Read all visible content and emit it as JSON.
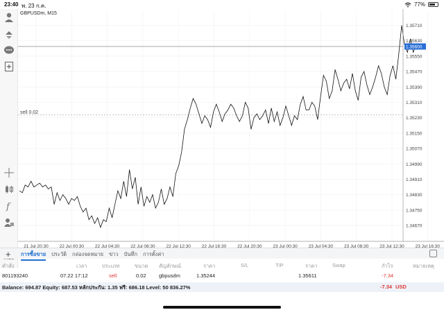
{
  "status": {
    "time": "23:40",
    "date": "พ. 23 ก.ค.",
    "battery": "77%",
    "battery_level": 0.77
  },
  "chart": {
    "symbol_label": "GBPUSDm, M15",
    "order_line_label": "sell 0.02",
    "current_price": "1.35600"
  },
  "chart_data": {
    "type": "line",
    "title": "GBPUSDm, M15",
    "y_ticks": [
      "1.35710",
      "1.35630",
      "1.35550",
      "1.35470",
      "1.35390",
      "1.35310",
      "1.35230",
      "1.35150",
      "1.35070",
      "1.34990",
      "1.34910",
      "1.34830",
      "1.34750",
      "1.34670"
    ],
    "x_ticks": [
      "21 Jul 20:30",
      "22 Jul 00:30",
      "22 Jul 04:30",
      "22 Jul 08:30",
      "22 Jul 12:30",
      "22 Jul 16:30",
      "22 Jul 20:30",
      "23 Jul 00:30",
      "23 Jul 04:30",
      "23 Jul 08:30",
      "23 Jul 12:30",
      "23 Jul 16:30"
    ],
    "ylim": [
      1.3464,
      1.3576
    ],
    "price_line": 1.356,
    "order_line": 1.35244,
    "close": [
      1.3485,
      1.3484,
      1.3488,
      1.3487,
      1.349,
      1.3487,
      1.3488,
      1.3489,
      1.3487,
      1.3488,
      1.3486,
      1.3487,
      1.3478,
      1.3484,
      1.348,
      1.3483,
      1.3481,
      1.3478,
      1.3481,
      1.348,
      1.3482,
      1.3477,
      1.3474,
      1.3476,
      1.347,
      1.3472,
      1.3468,
      1.3471,
      1.3466,
      1.347,
      1.3469,
      1.3476,
      1.3471,
      1.3478,
      1.3485,
      1.3481,
      1.349,
      1.3482,
      1.3496,
      1.3486,
      1.3492,
      1.3478,
      1.3487,
      1.3477,
      1.3482,
      1.3479,
      1.3483,
      1.3476,
      1.3479,
      1.3486,
      1.3478,
      1.3481,
      1.3487,
      1.3482,
      1.3494,
      1.3498,
      1.3505,
      1.3517,
      1.3522,
      1.3528,
      1.3533,
      1.353,
      1.3525,
      1.352,
      1.3524,
      1.3522,
      1.3518,
      1.3526,
      1.353,
      1.3526,
      1.3521,
      1.3525,
      1.3527,
      1.353,
      1.3528,
      1.3524,
      1.3521,
      1.3524,
      1.3531,
      1.3528,
      1.3517,
      1.3523,
      1.3525,
      1.3522,
      1.3524,
      1.3527,
      1.352,
      1.3528,
      1.3521,
      1.3526,
      1.3519,
      1.3523,
      1.3529,
      1.3524,
      1.3519,
      1.3524,
      1.3522,
      1.353,
      1.3534,
      1.3527,
      1.3527,
      1.3531,
      1.3529,
      1.3522,
      1.3534,
      1.3545,
      1.3542,
      1.3533,
      1.3537,
      1.3548,
      1.3543,
      1.3537,
      1.3541,
      1.3543,
      1.3538,
      1.3546,
      1.3537,
      1.3532,
      1.3544,
      1.3547,
      1.354,
      1.3535,
      1.3539,
      1.3544,
      1.355,
      1.3546,
      1.3539,
      1.3535,
      1.3545,
      1.355,
      1.3543,
      1.3556,
      1.3571,
      1.3561,
      1.3557,
      1.3564,
      1.3557,
      1.3561,
      1.356
    ]
  },
  "toolbar": {
    "tools": [
      "user-icon",
      "trade-icon",
      "chat-icon",
      "add-chart-icon",
      "crosshair-icon",
      "candles-icon",
      "indicator-icon",
      "objects-icon"
    ],
    "timeframe": "M15"
  },
  "tabs": [
    "การซื้อขาย",
    "ประวัติ",
    "กล่องจดหมาย",
    "ข่าว",
    "บันทึก",
    "การตั้งค่า"
  ],
  "table": {
    "headers": {
      "order": "คำสั่ง",
      "time": "เวลา",
      "type": "ประเภท",
      "volume": "ขนาด",
      "symbol": "สัญลักษณ์",
      "price": "ราคา",
      "sl": "S/L",
      "tp": "T/P",
      "cur_price": "ราคา",
      "swap": "Swap",
      "profit": "กำไร",
      "comment": "หมายเหตุ"
    },
    "row": {
      "order": "801193240",
      "time": "07.22 17:12",
      "type": "sell",
      "volume": "0.02",
      "symbol": "gbpusdm",
      "price": "1.35244",
      "cur_price": "1.35611",
      "profit": "-7.34"
    },
    "balance": {
      "text": "Balance: 694.87 Equity: 687.53 หลักประกัน: 1.35 ฟรี: 686.18 Level: 50 836.27%",
      "profit": "-7.34",
      "currency": "USD"
    }
  }
}
